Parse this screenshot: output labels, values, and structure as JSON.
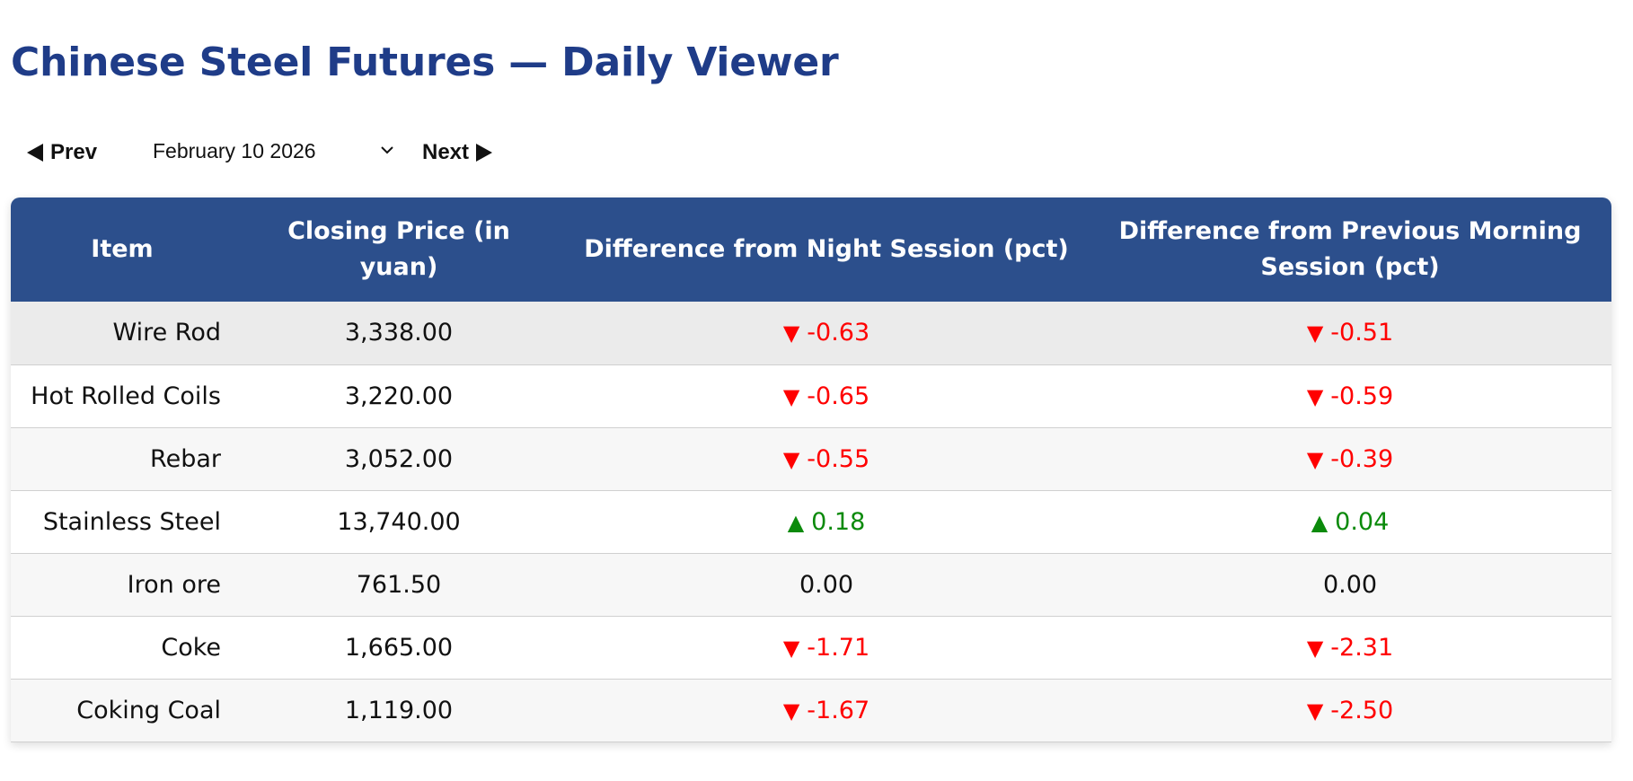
{
  "page": {
    "title": "Chinese Steel Futures — Daily Viewer"
  },
  "nav": {
    "prev_label": "Prev",
    "next_label": "Next",
    "selected_date": "February 10 2026"
  },
  "icons": {
    "prev": "triangle-left-icon",
    "next": "triangle-right-icon",
    "dropdown": "chevron-down-icon",
    "down": "triangle-down-icon",
    "up": "triangle-up-icon"
  },
  "colors": {
    "title": "#1f3c88",
    "header_bg": "#2c4f8c",
    "negative": "#ff0000",
    "positive": "#0b8a0b"
  },
  "table": {
    "headers": [
      "Item",
      "Closing Price (in yuan)",
      "Difference from Night Session (pct)",
      "Difference from Previous Morning Session (pct)"
    ],
    "rows": [
      {
        "item": "Wire Rod",
        "price": "3,338.00",
        "night_dir": "down",
        "night": "-0.63",
        "morning_dir": "down",
        "morning": "-0.51"
      },
      {
        "item": "Hot Rolled Coils",
        "price": "3,220.00",
        "night_dir": "down",
        "night": "-0.65",
        "morning_dir": "down",
        "morning": "-0.59"
      },
      {
        "item": "Rebar",
        "price": "3,052.00",
        "night_dir": "down",
        "night": "-0.55",
        "morning_dir": "down",
        "morning": "-0.39"
      },
      {
        "item": "Stainless Steel",
        "price": "13,740.00",
        "night_dir": "up",
        "night": "0.18",
        "morning_dir": "up",
        "morning": "0.04"
      },
      {
        "item": "Iron ore",
        "price": "761.50",
        "night_dir": "none",
        "night": "0.00",
        "morning_dir": "none",
        "morning": "0.00"
      },
      {
        "item": "Coke",
        "price": "1,665.00",
        "night_dir": "down",
        "night": "-1.71",
        "morning_dir": "down",
        "morning": "-2.31"
      },
      {
        "item": "Coking Coal",
        "price": "1,119.00",
        "night_dir": "down",
        "night": "-1.67",
        "morning_dir": "down",
        "morning": "-2.50"
      }
    ]
  }
}
